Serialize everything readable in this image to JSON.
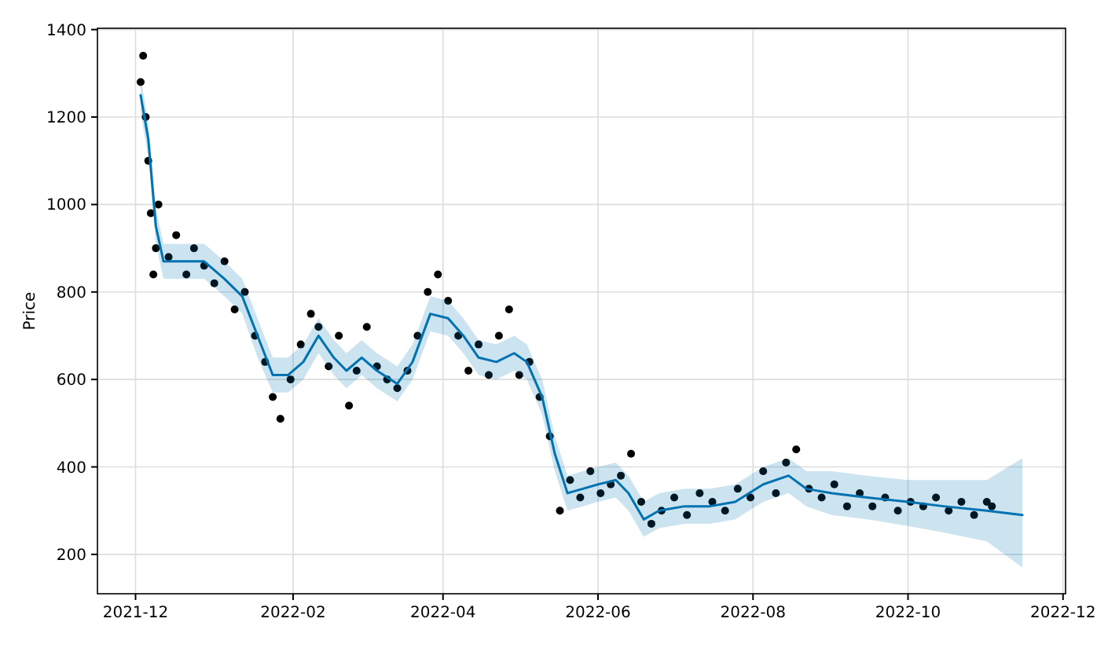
{
  "chart_data": {
    "type": "line",
    "ylabel": "Price",
    "xlim": [
      "2021-11-16",
      "2022-12-02"
    ],
    "ylim": [
      110,
      1403
    ],
    "xticks": [
      {
        "value": "2021-12-01",
        "label": "2021-12"
      },
      {
        "value": "2022-02-01",
        "label": "2022-02"
      },
      {
        "value": "2022-04-01",
        "label": "2022-04"
      },
      {
        "value": "2022-06-01",
        "label": "2022-06"
      },
      {
        "value": "2022-08-01",
        "label": "2022-08"
      },
      {
        "value": "2022-10-01",
        "label": "2022-10"
      },
      {
        "value": "2022-12-01",
        "label": "2022-12"
      }
    ],
    "yticks": [
      200,
      400,
      600,
      800,
      1000,
      1200,
      1400
    ],
    "grid": true,
    "series": [
      {
        "type": "scatter",
        "color": "#000000",
        "marker": "circle",
        "x": [
          "2021-12-03",
          "2021-12-04",
          "2021-12-05",
          "2021-12-06",
          "2021-12-07",
          "2021-12-08",
          "2021-12-09",
          "2021-12-10",
          "2021-12-14",
          "2021-12-17",
          "2021-12-21",
          "2021-12-24",
          "2021-12-28",
          "2022-01-01",
          "2022-01-05",
          "2022-01-09",
          "2022-01-13",
          "2022-01-17",
          "2022-01-21",
          "2022-01-24",
          "2022-01-27",
          "2022-01-31",
          "2022-02-04",
          "2022-02-08",
          "2022-02-11",
          "2022-02-15",
          "2022-02-19",
          "2022-02-23",
          "2022-02-26",
          "2022-03-02",
          "2022-03-06",
          "2022-03-10",
          "2022-03-14",
          "2022-03-18",
          "2022-03-22",
          "2022-03-26",
          "2022-03-30",
          "2022-04-03",
          "2022-04-07",
          "2022-04-11",
          "2022-04-15",
          "2022-04-19",
          "2022-04-23",
          "2022-04-27",
          "2022-05-01",
          "2022-05-05",
          "2022-05-09",
          "2022-05-13",
          "2022-05-17",
          "2022-05-21",
          "2022-05-25",
          "2022-05-29",
          "2022-06-02",
          "2022-06-06",
          "2022-06-10",
          "2022-06-14",
          "2022-06-18",
          "2022-06-22",
          "2022-06-26",
          "2022-07-01",
          "2022-07-06",
          "2022-07-11",
          "2022-07-16",
          "2022-07-21",
          "2022-07-26",
          "2022-07-31",
          "2022-08-05",
          "2022-08-10",
          "2022-08-14",
          "2022-08-18",
          "2022-08-23",
          "2022-08-28",
          "2022-09-02",
          "2022-09-07",
          "2022-09-12",
          "2022-09-17",
          "2022-09-22",
          "2022-09-27",
          "2022-10-02",
          "2022-10-07",
          "2022-10-12",
          "2022-10-17",
          "2022-10-22",
          "2022-10-27",
          "2022-11-01",
          "2022-11-03"
        ],
        "values": [
          1280,
          1340,
          1200,
          1100,
          980,
          840,
          900,
          1000,
          880,
          930,
          840,
          900,
          860,
          820,
          870,
          760,
          800,
          700,
          640,
          560,
          510,
          600,
          680,
          750,
          720,
          630,
          700,
          540,
          620,
          720,
          630,
          600,
          580,
          620,
          700,
          800,
          840,
          780,
          700,
          620,
          680,
          610,
          700,
          760,
          610,
          640,
          560,
          470,
          300,
          370,
          330,
          390,
          340,
          360,
          380,
          430,
          320,
          270,
          300,
          330,
          290,
          340,
          320,
          300,
          350,
          330,
          390,
          340,
          410,
          440,
          350,
          330,
          360,
          310,
          340,
          310,
          330,
          300,
          320,
          310,
          330,
          300,
          320,
          290,
          320,
          310
        ]
      },
      {
        "color": "#0072b2",
        "x": [
          "2021-12-03",
          "2021-12-06",
          "2021-12-09",
          "2021-12-12",
          "2021-12-20",
          "2021-12-28",
          "2022-01-05",
          "2022-01-12",
          "2022-01-18",
          "2022-01-24",
          "2022-01-30",
          "2022-02-05",
          "2022-02-11",
          "2022-02-17",
          "2022-02-22",
          "2022-02-28",
          "2022-03-06",
          "2022-03-14",
          "2022-03-20",
          "2022-03-27",
          "2022-04-03",
          "2022-04-09",
          "2022-04-15",
          "2022-04-22",
          "2022-04-29",
          "2022-05-04",
          "2022-05-10",
          "2022-05-15",
          "2022-05-20",
          "2022-05-26",
          "2022-06-01",
          "2022-06-08",
          "2022-06-13",
          "2022-06-19",
          "2022-06-25",
          "2022-07-05",
          "2022-07-15",
          "2022-07-25",
          "2022-08-05",
          "2022-08-15",
          "2022-08-22",
          "2022-09-01",
          "2022-09-15",
          "2022-10-01",
          "2022-10-15",
          "2022-11-01",
          "2022-11-15"
        ],
        "values": [
          1250,
          1150,
          950,
          870,
          870,
          870,
          830,
          790,
          700,
          610,
          610,
          640,
          700,
          650,
          620,
          650,
          620,
          590,
          640,
          750,
          740,
          700,
          650,
          640,
          660,
          640,
          560,
          430,
          340,
          350,
          360,
          370,
          340,
          280,
          300,
          310,
          310,
          320,
          360,
          380,
          350,
          340,
          330,
          320,
          310,
          300,
          290
        ],
        "lower": [
          1210,
          1110,
          910,
          830,
          830,
          830,
          790,
          750,
          650,
          570,
          570,
          600,
          660,
          610,
          580,
          610,
          580,
          550,
          600,
          710,
          700,
          660,
          610,
          600,
          620,
          600,
          520,
          390,
          300,
          310,
          320,
          330,
          300,
          240,
          260,
          270,
          270,
          280,
          320,
          340,
          310,
          290,
          280,
          265,
          250,
          230,
          170
        ],
        "upper": [
          1290,
          1190,
          990,
          910,
          910,
          910,
          870,
          830,
          740,
          650,
          650,
          680,
          740,
          690,
          660,
          690,
          660,
          630,
          680,
          790,
          780,
          740,
          690,
          680,
          700,
          680,
          600,
          470,
          380,
          390,
          400,
          410,
          380,
          320,
          340,
          350,
          350,
          360,
          400,
          420,
          390,
          390,
          380,
          370,
          370,
          370,
          420
        ]
      }
    ]
  }
}
